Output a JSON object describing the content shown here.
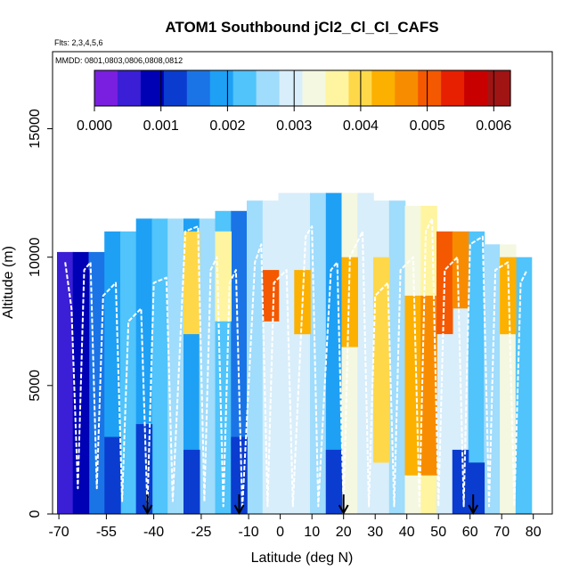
{
  "chart_data": {
    "type": "heatmap",
    "title": "ATOM1 Southbound jCl2_Cl_Cl_CAFS",
    "flights_label": "Flts: 2,3,4,5,6",
    "dates_label": "MMDD: 0801,0803,0806,0808,0812",
    "xlabel": "Latitude (deg N)",
    "ylabel": "Altitude (m)",
    "xlim": [
      -72,
      86
    ],
    "ylim": [
      0,
      18000
    ],
    "x_ticks": [
      -70,
      -55,
      -40,
      -25,
      -10,
      0,
      10,
      20,
      30,
      40,
      50,
      60,
      70,
      80
    ],
    "y_ticks": [
      0,
      5000,
      10000,
      15000
    ],
    "colorbar": {
      "ticks": [
        "0.000",
        "0.001",
        "0.002",
        "0.003",
        "0.004",
        "0.005",
        "0.006"
      ],
      "range": [
        0,
        0.00625
      ],
      "colors": [
        "#7a1fe0",
        "#3a1fd6",
        "#0000b4",
        "#0a3ccf",
        "#1a74e6",
        "#1ea0f5",
        "#50c4fb",
        "#a0dcfc",
        "#d8eefa",
        "#f4f8e0",
        "#fff4a0",
        "#ffd84a",
        "#fcb000",
        "#f88c00",
        "#f45800",
        "#e62000",
        "#c80000",
        "#a01414"
      ]
    },
    "bands": [
      {
        "lat": -68,
        "bottom": 0,
        "top": 10200,
        "value": 0.0006
      },
      {
        "lat": -63,
        "bottom": 0,
        "top": 10200,
        "value": 0.001
      },
      {
        "lat": -58,
        "bottom": 0,
        "top": 10200,
        "value": 0.0014
      },
      {
        "lat": -53,
        "bottom": 0,
        "top": 11000,
        "value": 0.002
      },
      {
        "lat": -48,
        "bottom": 0,
        "top": 11000,
        "value": 0.0024
      },
      {
        "lat": -43,
        "bottom": 0,
        "top": 11500,
        "value": 0.0018
      },
      {
        "lat": -38,
        "bottom": 0,
        "top": 11500,
        "value": 0.0022
      },
      {
        "lat": -33,
        "bottom": 0,
        "top": 11500,
        "value": 0.0026
      },
      {
        "lat": -28,
        "bottom": 0,
        "top": 11500,
        "value": 0.0019
      },
      {
        "lat": -23,
        "bottom": 0,
        "top": 11500,
        "value": 0.0027
      },
      {
        "lat": -18,
        "bottom": 0,
        "top": 11800,
        "value": 0.0023
      },
      {
        "lat": -13,
        "bottom": 0,
        "top": 11800,
        "value": 0.0017
      },
      {
        "lat": -8,
        "bottom": 0,
        "top": 12200,
        "value": 0.0025
      },
      {
        "lat": -3,
        "bottom": 0,
        "top": 12200,
        "value": 0.0029
      },
      {
        "lat": 2,
        "bottom": 0,
        "top": 12500,
        "value": 0.0028
      },
      {
        "lat": 7,
        "bottom": 0,
        "top": 12500,
        "value": 0.003
      },
      {
        "lat": 12,
        "bottom": 0,
        "top": 12500,
        "value": 0.0026
      },
      {
        "lat": 17,
        "bottom": 0,
        "top": 12500,
        "value": 0.002
      },
      {
        "lat": 22,
        "bottom": 0,
        "top": 12500,
        "value": 0.0032
      },
      {
        "lat": 27,
        "bottom": 0,
        "top": 12500,
        "value": 0.0029
      },
      {
        "lat": 32,
        "bottom": 0,
        "top": 12200,
        "value": 0.0031
      },
      {
        "lat": 37,
        "bottom": 0,
        "top": 12200,
        "value": 0.0027
      },
      {
        "lat": 42,
        "bottom": 0,
        "top": 12000,
        "value": 0.0034
      },
      {
        "lat": 47,
        "bottom": 0,
        "top": 12000,
        "value": 0.0036
      },
      {
        "lat": 52,
        "bottom": 0,
        "top": 11000,
        "value": 0.0028
      },
      {
        "lat": 57,
        "bottom": 0,
        "top": 11000,
        "value": 0.003
      },
      {
        "lat": 62,
        "bottom": 0,
        "top": 11000,
        "value": 0.0024
      },
      {
        "lat": 67,
        "bottom": 0,
        "top": 10500,
        "value": 0.0026
      },
      {
        "lat": 72,
        "bottom": 0,
        "top": 10500,
        "value": 0.0033
      },
      {
        "lat": 77,
        "bottom": 0,
        "top": 10000,
        "value": 0.0022
      }
    ],
    "hotspots": [
      {
        "lat": -28,
        "bottom": 7000,
        "top": 11000,
        "value": 0.004
      },
      {
        "lat": -18,
        "bottom": 7500,
        "top": 11000,
        "value": 0.0038
      },
      {
        "lat": -3,
        "bottom": 7500,
        "top": 9500,
        "value": 0.005
      },
      {
        "lat": 7,
        "bottom": 7000,
        "top": 9500,
        "value": 0.0042
      },
      {
        "lat": 22,
        "bottom": 6500,
        "top": 10000,
        "value": 0.0044
      },
      {
        "lat": 32,
        "bottom": 2000,
        "top": 10000,
        "value": 0.004
      },
      {
        "lat": 42,
        "bottom": 1500,
        "top": 8500,
        "value": 0.0043
      },
      {
        "lat": 47,
        "bottom": 1500,
        "top": 8500,
        "value": 0.0046
      },
      {
        "lat": 52,
        "bottom": 7000,
        "top": 11000,
        "value": 0.0052
      },
      {
        "lat": 57,
        "bottom": 8000,
        "top": 11000,
        "value": 0.0048
      },
      {
        "lat": 72,
        "bottom": 7000,
        "top": 10000,
        "value": 0.0042
      }
    ],
    "low_zones": [
      {
        "lat": -68,
        "bottom": 0,
        "top": 9500,
        "value": 0.0004
      },
      {
        "lat": -63,
        "bottom": 0,
        "top": 9500,
        "value": 0.0007
      },
      {
        "lat": -53,
        "bottom": 0,
        "top": 3000,
        "value": 0.0012
      },
      {
        "lat": -43,
        "bottom": 0,
        "top": 3500,
        "value": 0.0013
      },
      {
        "lat": -28,
        "bottom": 0,
        "top": 2500,
        "value": 0.0011
      },
      {
        "lat": -13,
        "bottom": 0,
        "top": 3000,
        "value": 0.0013
      },
      {
        "lat": 17,
        "bottom": 0,
        "top": 2500,
        "value": 0.0012
      },
      {
        "lat": 57,
        "bottom": 0,
        "top": 2500,
        "value": 0.0011
      },
      {
        "lat": 62,
        "bottom": 0,
        "top": 2000,
        "value": 0.0012
      }
    ],
    "flight_tracks": [
      {
        "name": "flight-track-1",
        "points": [
          [
            -68,
            9800
          ],
          [
            -66,
            8000
          ],
          [
            -64,
            1000
          ],
          [
            -62,
            9500
          ],
          [
            -60,
            9800
          ],
          [
            -58,
            1000
          ],
          [
            -56,
            8500
          ],
          [
            -52,
            9000
          ],
          [
            -50,
            500
          ],
          [
            -48,
            7500
          ],
          [
            -44,
            8000
          ],
          [
            -42,
            200
          ],
          [
            -40,
            9000
          ],
          [
            -36,
            9200
          ],
          [
            -34,
            500
          ],
          [
            -30,
            11000
          ],
          [
            -26,
            11200
          ],
          [
            -24,
            500
          ]
        ]
      },
      {
        "name": "flight-track-2",
        "points": [
          [
            -24,
            500
          ],
          [
            -22,
            9500
          ],
          [
            -20,
            10000
          ],
          [
            -18,
            300
          ],
          [
            -16,
            9000
          ],
          [
            -14,
            9500
          ],
          [
            -12,
            200
          ],
          [
            -8,
            9800
          ],
          [
            -6,
            10500
          ],
          [
            -4,
            300
          ],
          [
            -2,
            9000
          ],
          [
            2,
            9500
          ],
          [
            4,
            300
          ],
          [
            8,
            10800
          ],
          [
            10,
            11200
          ],
          [
            12,
            300
          ],
          [
            16,
            9500
          ],
          [
            18,
            9800
          ],
          [
            20,
            200
          ]
        ]
      },
      {
        "name": "flight-track-3",
        "points": [
          [
            20,
            200
          ],
          [
            22,
            10000
          ],
          [
            26,
            11000
          ],
          [
            28,
            300
          ],
          [
            30,
            8500
          ],
          [
            34,
            9000
          ],
          [
            36,
            300
          ],
          [
            38,
            9500
          ],
          [
            42,
            10000
          ],
          [
            44,
            300
          ],
          [
            46,
            11000
          ],
          [
            48,
            11500
          ],
          [
            50,
            300
          ],
          [
            52,
            9500
          ],
          [
            56,
            10000
          ],
          [
            58,
            300
          ],
          [
            60,
            10500
          ],
          [
            64,
            10800
          ],
          [
            66,
            300
          ],
          [
            68,
            9500
          ],
          [
            72,
            9800
          ],
          [
            74,
            300
          ],
          [
            76,
            9000
          ],
          [
            78,
            9500
          ]
        ]
      }
    ],
    "markers_lat": [
      -42,
      -13,
      20,
      61
    ]
  }
}
